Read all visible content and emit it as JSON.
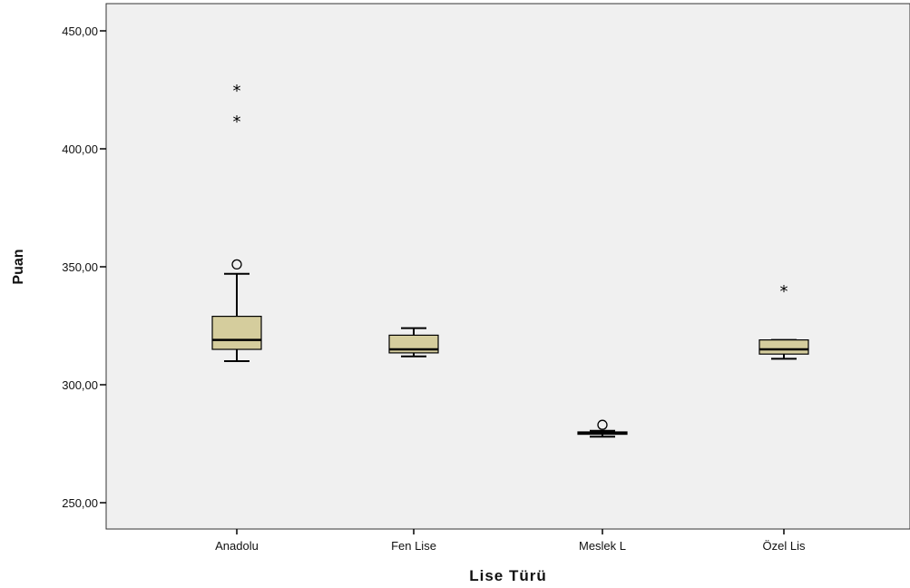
{
  "chart_data": {
    "type": "box",
    "title": "",
    "xlabel": "Lise Türü",
    "ylabel": "Puan",
    "ylim": [
      240,
      460
    ],
    "y_ticks": [
      250,
      300,
      350,
      400,
      450
    ],
    "y_tick_labels": [
      "250,00",
      "300,00",
      "350,00",
      "400,00",
      "450,00"
    ],
    "categories": [
      "Anadolu",
      "Fen Lise",
      "Meslek L",
      "Özel Lis"
    ],
    "boxes": [
      {
        "category": "Anadolu",
        "whisker_low": 310,
        "q1": 315,
        "median": 319,
        "q3": 329,
        "whisker_high": 347,
        "outliers": [
          {
            "value": 351,
            "marker": "circle"
          },
          {
            "value": 412,
            "marker": "star"
          },
          {
            "value": 425,
            "marker": "star"
          }
        ]
      },
      {
        "category": "Fen Lise",
        "whisker_low": 312,
        "q1": 313.5,
        "median": 315,
        "q3": 321,
        "whisker_high": 324,
        "outliers": []
      },
      {
        "category": "Meslek L",
        "whisker_low": 278,
        "q1": 279,
        "median": 279.5,
        "q3": 280,
        "whisker_high": 280.5,
        "outliers": [
          {
            "value": 283,
            "marker": "circle"
          }
        ]
      },
      {
        "category": "Özel Lis",
        "whisker_low": 311,
        "q1": 313,
        "median": 315,
        "q3": 319,
        "whisker_high": 319,
        "outliers": [
          {
            "value": 340,
            "marker": "star"
          }
        ]
      }
    ],
    "colors": {
      "box_fill": "#d5cd9d",
      "plot_background": "#f0f0f0",
      "stroke": "#000000"
    },
    "grid": false,
    "legend": "none"
  }
}
